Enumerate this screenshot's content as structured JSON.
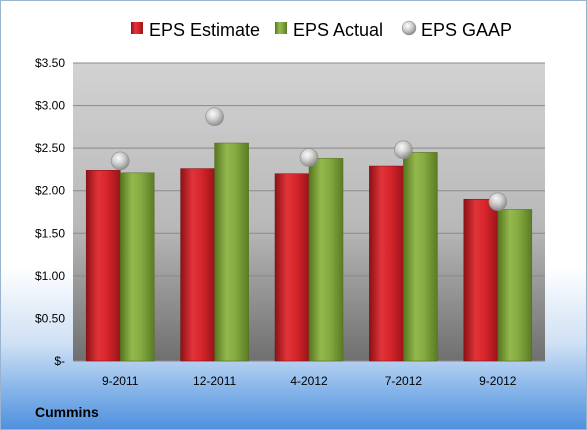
{
  "chart_data": {
    "type": "bar",
    "categories": [
      "9-2011",
      "12-2011",
      "4-2012",
      "7-2012",
      "9-2012"
    ],
    "series": [
      {
        "name": "EPS Estimate",
        "values": [
          2.24,
          2.26,
          2.2,
          2.29,
          1.9
        ],
        "color": "#cc1f26"
      },
      {
        "name": "EPS Actual",
        "values": [
          2.21,
          2.56,
          2.38,
          2.45,
          1.78
        ],
        "color": "#7ea33c"
      },
      {
        "name": "EPS GAAP",
        "values": [
          2.35,
          2.87,
          2.39,
          2.48,
          1.87
        ],
        "color": "#c8c8c8",
        "marker": "circle"
      }
    ],
    "ylim": [
      0,
      3.5
    ],
    "yticks": [
      0,
      0.5,
      1.0,
      1.5,
      2.0,
      2.5,
      3.0,
      3.5
    ],
    "ytick_labels": [
      "$-",
      "$0.50",
      "$1.00",
      "$1.50",
      "$2.00",
      "$2.50",
      "$3.00",
      "$3.50"
    ],
    "grid": true,
    "legend_position": "top"
  },
  "company_label": "Cummins"
}
